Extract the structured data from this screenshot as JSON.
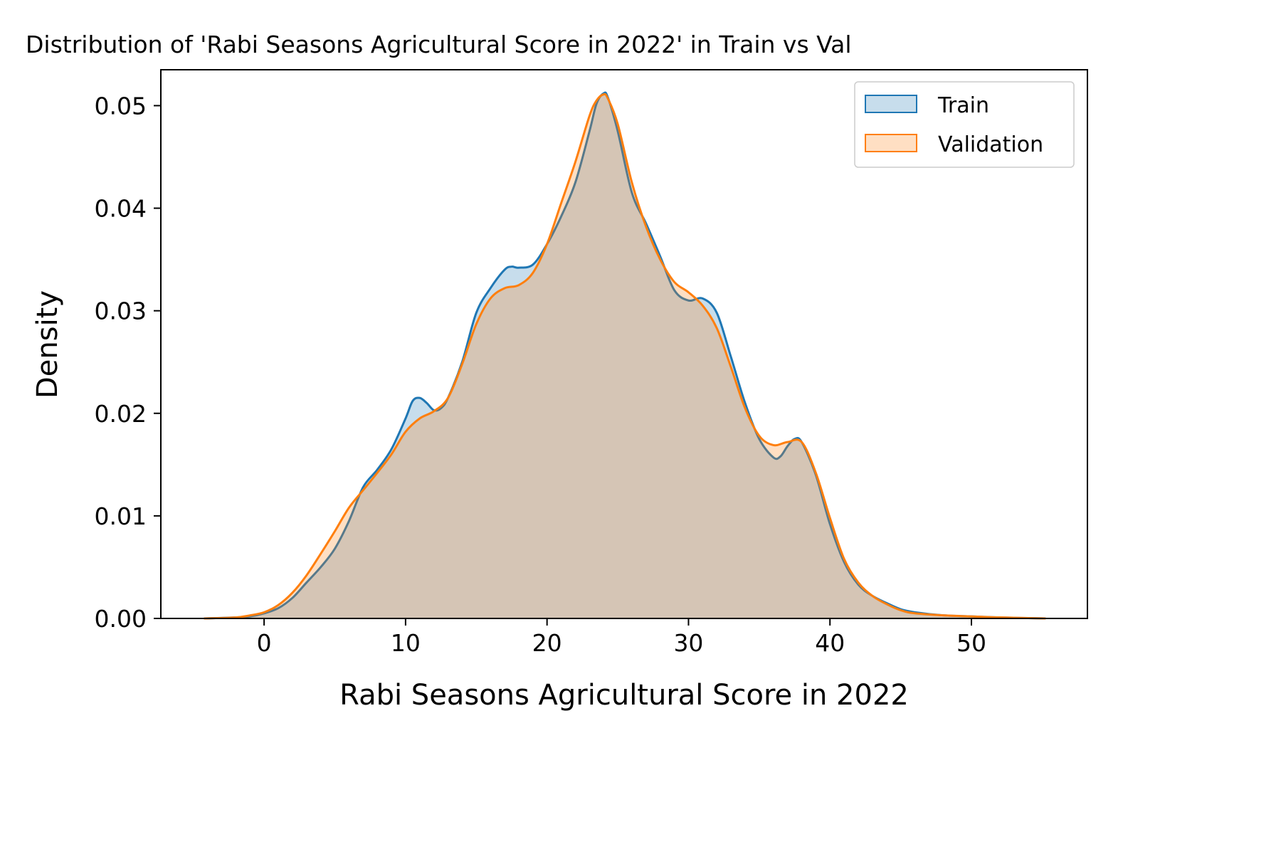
{
  "chart_data": {
    "type": "area",
    "title": "Distribution of 'Rabi Seasons Agricultural Score in 2022' in Train vs Val",
    "xlabel": "Rabi Seasons Agricultural Score in 2022",
    "ylabel": "Density",
    "xlim": [
      -7.3,
      58.2
    ],
    "ylim": [
      0,
      0.0535
    ],
    "x_ticks": [
      0,
      10,
      20,
      30,
      40,
      50
    ],
    "x_tick_labels": [
      "0",
      "10",
      "20",
      "30",
      "40",
      "50"
    ],
    "y_ticks": [
      0,
      0.01,
      0.02,
      0.03,
      0.04,
      0.05
    ],
    "y_tick_labels": [
      "0.00",
      "0.01",
      "0.02",
      "0.03",
      "0.04",
      "0.05"
    ],
    "grid": false,
    "legend_position": "top-right",
    "series": [
      {
        "name": "Train",
        "color": "#1f77b4",
        "fill": "#c6dbef",
        "x": [
          -4.2,
          -2,
          -1,
          0,
          1,
          2,
          3,
          4,
          5,
          6,
          7,
          8,
          9,
          10,
          10.5,
          11,
          11.5,
          12,
          12.5,
          13,
          14,
          15,
          16,
          17,
          17.5,
          18,
          19,
          20,
          21,
          22,
          23,
          23.5,
          24,
          24.3,
          25,
          26,
          27,
          28,
          29,
          30,
          31,
          32,
          33,
          34,
          35,
          36,
          36.5,
          37,
          37.5,
          38,
          39,
          40,
          41,
          42,
          43,
          44,
          45,
          46,
          48,
          50,
          52,
          55.2
        ],
        "y": [
          0,
          0.0001,
          0.0002,
          0.0005,
          0.001,
          0.002,
          0.0035,
          0.005,
          0.0068,
          0.0095,
          0.0128,
          0.0145,
          0.0165,
          0.0195,
          0.0212,
          0.0215,
          0.021,
          0.0203,
          0.0205,
          0.0215,
          0.025,
          0.0298,
          0.0322,
          0.034,
          0.0343,
          0.0342,
          0.0345,
          0.0365,
          0.0392,
          0.0425,
          0.0475,
          0.0502,
          0.0512,
          0.0508,
          0.0475,
          0.0415,
          0.0385,
          0.0353,
          0.032,
          0.031,
          0.0312,
          0.0298,
          0.0255,
          0.021,
          0.0175,
          0.0157,
          0.0158,
          0.0168,
          0.0175,
          0.0172,
          0.014,
          0.0092,
          0.0055,
          0.0033,
          0.0022,
          0.0015,
          0.0009,
          0.0006,
          0.0003,
          0.0002,
          0.0001,
          0
        ]
      },
      {
        "name": "Validation",
        "color": "#ff7f0e",
        "fill": "#fdd5b4",
        "x": [
          -4.2,
          -2,
          -1,
          0,
          1,
          2,
          3,
          4,
          5,
          6,
          7,
          8,
          9,
          10,
          11,
          12,
          13,
          14,
          15,
          16,
          17,
          18,
          19,
          20,
          21,
          22,
          23,
          23.5,
          24,
          24.3,
          25,
          26,
          27,
          28,
          29,
          30,
          31,
          32,
          33,
          34,
          35,
          36,
          37,
          38,
          39,
          40,
          41,
          42,
          43,
          44,
          45,
          46,
          48,
          50,
          52,
          55.2
        ],
        "y": [
          0,
          0.0001,
          0.0003,
          0.0006,
          0.0013,
          0.0025,
          0.0042,
          0.0063,
          0.0085,
          0.0108,
          0.0125,
          0.0142,
          0.016,
          0.0182,
          0.0195,
          0.0202,
          0.0215,
          0.0248,
          0.0287,
          0.0312,
          0.0322,
          0.0325,
          0.0337,
          0.0365,
          0.0405,
          0.0445,
          0.049,
          0.0505,
          0.0511,
          0.0507,
          0.0482,
          0.0425,
          0.0382,
          0.035,
          0.0328,
          0.0318,
          0.0305,
          0.0283,
          0.0245,
          0.0205,
          0.0178,
          0.0169,
          0.0172,
          0.0172,
          0.0142,
          0.0098,
          0.0058,
          0.0035,
          0.0022,
          0.0014,
          0.0008,
          0.0005,
          0.0003,
          0.0002,
          0.0001,
          0
        ]
      }
    ]
  }
}
